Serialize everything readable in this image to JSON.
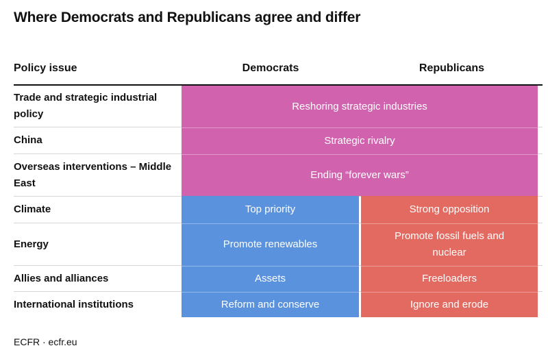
{
  "title": "Where Democrats and Republicans agree and differ",
  "headers": {
    "issue": "Policy issue",
    "democrats": "Democrats",
    "republicans": "Republicans"
  },
  "rows": [
    {
      "issue": "Trade and strategic industrial policy",
      "shared": "Reshoring strategic industries"
    },
    {
      "issue": "China",
      "shared": "Strategic rivalry"
    },
    {
      "issue": "Overseas interventions – Middle East",
      "shared": "Ending “forever wars”"
    },
    {
      "issue": "Climate",
      "democrats": "Top priority",
      "republicans": "Strong opposition"
    },
    {
      "issue": "Energy",
      "democrats": "Promote renewables",
      "republicans": "Promote fossil fuels and nuclear"
    },
    {
      "issue": "Allies and alliances",
      "democrats": "Assets",
      "republicans": "Freeloaders"
    },
    {
      "issue": "International institutions",
      "democrats": "Reform and conserve",
      "republicans": "Ignore and erode"
    }
  ],
  "colors": {
    "shared": "#d163ae",
    "democrats": "#5b92dd",
    "republicans": "#e36a61"
  },
  "source": "ECFR · ecfr.eu"
}
